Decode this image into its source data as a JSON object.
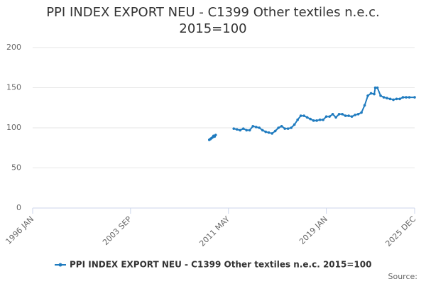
{
  "chart_data": {
    "type": "line",
    "title": "PPI INDEX EXPORT NEU - C1399 Other textiles n.e.c. 2015=100",
    "source": "Source:",
    "x": [
      "2009 NOV",
      "2009 DEC",
      "2010 JAN",
      "2010 FEB",
      "2010 MAR",
      "2010 APR",
      "2010 MAY",
      "2010 JUN",
      "2011 OCT",
      "2012 JAN",
      "2012 APR",
      "2012 JUL",
      "2012 OCT",
      "2013 JAN",
      "2013 APR",
      "2013 JUL",
      "2013 OCT",
      "2014 JAN",
      "2014 APR",
      "2014 JUL",
      "2014 OCT",
      "2015 JAN",
      "2015 APR",
      "2015 JUL",
      "2015 OCT",
      "2016 JAN",
      "2016 APR",
      "2016 JUL",
      "2016 OCT",
      "2017 JAN",
      "2017 APR",
      "2017 JUL",
      "2017 OCT",
      "2018 JAN",
      "2018 APR",
      "2018 JUL",
      "2018 OCT",
      "2019 JAN",
      "2019 APR",
      "2019 JUL",
      "2019 OCT",
      "2020 JAN",
      "2020 APR",
      "2020 JUL",
      "2020 OCT",
      "2021 JAN",
      "2021 APR",
      "2021 JUL",
      "2021 OCT",
      "2022 JAN",
      "2022 APR",
      "2022 JUL",
      "2022 OCT",
      "2022 NOV",
      "2023 JAN",
      "2023 APR",
      "2023 JUL",
      "2023 OCT",
      "2024 JAN",
      "2024 APR",
      "2024 JUL",
      "2024 OCT",
      "2025 JAN",
      "2025 APR",
      "2025 JUL",
      "2025 DEC"
    ],
    "series": [
      {
        "name": "PPI INDEX EXPORT NEU - C1399 Other textiles n.e.c. 2015=100",
        "color": "#1f7bbf",
        "values": [
          85,
          86,
          87,
          88,
          90,
          89,
          91,
          null,
          99,
          98,
          97,
          99,
          97,
          97,
          102,
          101,
          100,
          97,
          95,
          94,
          93,
          96,
          100,
          102,
          99,
          99,
          100,
          104,
          110,
          115,
          115,
          113,
          111,
          109,
          109,
          110,
          110,
          114,
          114,
          117,
          113,
          117,
          117,
          115,
          115,
          114,
          116,
          117,
          119,
          128,
          140,
          143,
          142,
          150,
          150,
          140,
          138,
          137,
          136,
          135,
          136,
          136,
          138,
          138,
          138,
          138
        ]
      }
    ],
    "xlim": [
      "1996 JAN",
      "2025 DEC"
    ],
    "xticks": [
      "1996 JAN",
      "2003 SEP",
      "2011 MAY",
      "2019 JAN",
      "2025 DEC"
    ],
    "ylim": [
      0,
      200
    ],
    "yticks": [
      0,
      50,
      100,
      150,
      200
    ],
    "grid": true,
    "legend": "bottom"
  }
}
